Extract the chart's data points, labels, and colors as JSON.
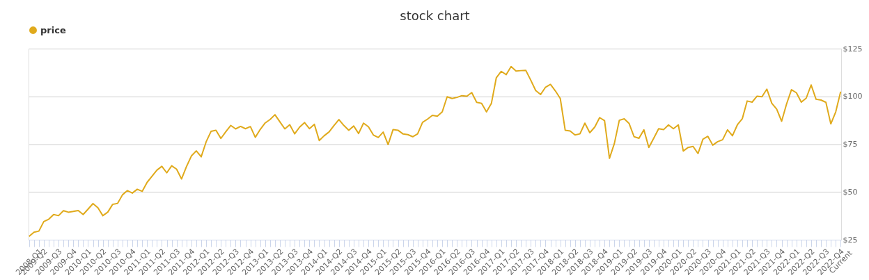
{
  "chart_data": {
    "type": "line",
    "title": "stock chart",
    "legend": "top",
    "grid": "y",
    "categories": [
      "2008-Q1",
      "2009-Q2",
      null,
      null,
      "2009-Q3",
      null,
      null,
      "2009-Q4",
      null,
      null,
      "2010-Q1",
      null,
      null,
      "2010-Q2",
      null,
      null,
      "2010-Q3",
      null,
      null,
      "2010-Q4",
      null,
      null,
      "2011-Q1",
      null,
      null,
      "2011-Q2",
      null,
      null,
      "2011-Q3",
      null,
      null,
      "2011-Q4",
      null,
      null,
      "2012-Q1",
      null,
      null,
      "2012-Q2",
      null,
      null,
      "2012-Q3",
      null,
      null,
      "2012-Q4",
      null,
      null,
      "2013-Q1",
      null,
      null,
      "2013-Q2",
      null,
      null,
      "2013-Q3",
      null,
      null,
      "2013-Q4",
      null,
      null,
      "2014-Q1",
      null,
      null,
      "2014-Q2",
      null,
      null,
      "2014-Q3",
      null,
      null,
      "2014-Q4",
      null,
      null,
      "2015-Q1",
      null,
      null,
      "2015-Q2",
      null,
      null,
      "2015-Q3",
      null,
      null,
      "2015-Q4",
      null,
      null,
      "2016-Q1",
      null,
      null,
      "2016-Q2",
      null,
      null,
      "2016-Q3",
      null,
      null,
      "2016-Q4",
      null,
      null,
      "2017-Q1",
      null,
      null,
      "2017-Q2",
      null,
      null,
      "2017-Q3",
      null,
      null,
      "2017-Q4",
      null,
      null,
      "2018-Q1",
      null,
      null,
      "2018-Q2",
      null,
      null,
      "2018-Q3",
      null,
      null,
      "2018-Q4",
      null,
      null,
      "2019-Q1",
      null,
      null,
      "2019-Q2",
      null,
      null,
      "2019-Q3",
      null,
      null,
      "2019-Q4",
      null,
      null,
      "2020-Q1",
      null,
      null,
      "2020-Q2",
      null,
      null,
      "2020-Q3",
      null,
      null,
      "2020-Q4",
      null,
      null,
      "2021-Q1",
      null,
      null,
      "2021-Q2",
      null,
      null,
      "2021-Q3",
      null,
      null,
      "2021-Q4",
      null,
      null,
      "2022-Q1",
      null,
      null,
      "2022-Q2",
      null,
      null,
      "2022-Q3",
      null,
      null,
      "2022-Q4",
      null,
      "Current"
    ],
    "series": [
      {
        "name": "price",
        "color": "#e0aa1c",
        "values": [
          26.7,
          28.9,
          29.5,
          34.5,
          35.7,
          38.2,
          37.6,
          40.2,
          39.4,
          39.8,
          40.3,
          38.2,
          41.0,
          43.9,
          41.7,
          37.6,
          39.4,
          43.5,
          44.0,
          48.5,
          50.7,
          49.4,
          51.4,
          50.3,
          55.0,
          58.2,
          61.4,
          63.4,
          60.0,
          63.7,
          61.9,
          56.8,
          63.2,
          68.8,
          71.5,
          68.4,
          76.2,
          81.7,
          82.3,
          78.0,
          81.5,
          84.8,
          83.0,
          84.3,
          83.1,
          84.2,
          78.6,
          82.7,
          86.1,
          87.9,
          90.4,
          86.7,
          83.0,
          85.2,
          80.4,
          83.9,
          86.3,
          83.1,
          85.4,
          76.9,
          79.4,
          81.4,
          84.8,
          87.9,
          84.8,
          82.3,
          84.5,
          80.6,
          86.0,
          84.1,
          79.8,
          78.5,
          81.3,
          74.8,
          82.6,
          82.3,
          80.4,
          80.0,
          78.9,
          80.4,
          86.4,
          88.1,
          90.1,
          89.6,
          91.9,
          99.8,
          98.9,
          99.5,
          100.4,
          100.1,
          102.0,
          96.9,
          96.4,
          91.9,
          96.4,
          109.8,
          113.1,
          111.4,
          115.6,
          113.3,
          113.5,
          113.6,
          108.5,
          103.1,
          101.0,
          104.8,
          106.3,
          102.9,
          98.9,
          82.3,
          81.9,
          79.8,
          80.4,
          86.0,
          81.0,
          83.9,
          88.9,
          87.3,
          67.6,
          75.4,
          87.5,
          88.3,
          85.8,
          78.9,
          78.1,
          82.5,
          73.3,
          78.1,
          83.1,
          82.6,
          85.1,
          83.1,
          85.1,
          71.4,
          73.3,
          73.8,
          70.1,
          77.6,
          79.1,
          74.5,
          76.3,
          77.3,
          82.5,
          79.4,
          85.1,
          88.3,
          97.6,
          97.0,
          100.1,
          99.8,
          103.8,
          96.4,
          93.3,
          87.0,
          96.0,
          103.5,
          101.9,
          97.0,
          99.1,
          106.0,
          98.5,
          98.1,
          96.9,
          85.6,
          91.9,
          102.5
        ]
      }
    ],
    "ylim": [
      25,
      125
    ],
    "yticks": [
      {
        "value": 25,
        "label": "$25"
      },
      {
        "value": 50,
        "label": "$50"
      },
      {
        "value": 75,
        "label": "$75"
      },
      {
        "value": 100,
        "label": "$100"
      },
      {
        "value": 125,
        "label": "$125"
      }
    ]
  }
}
